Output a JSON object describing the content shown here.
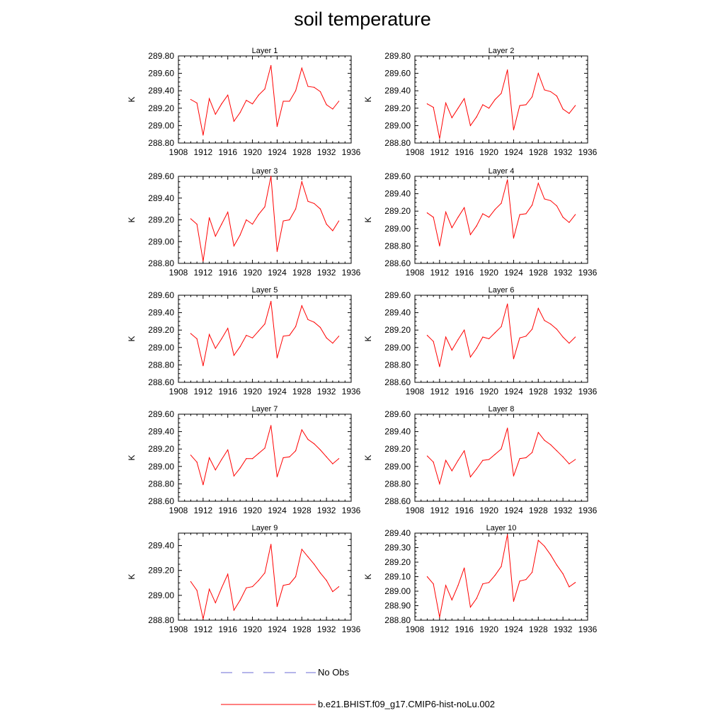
{
  "title": "soil temperature",
  "chart_data": {
    "type": "line",
    "ylabel": "K",
    "x": [
      1910,
      1911,
      1912,
      1913,
      1914,
      1915,
      1916,
      1917,
      1918,
      1919,
      1920,
      1921,
      1922,
      1923,
      1924,
      1925,
      1926,
      1927,
      1928,
      1929,
      1930,
      1931,
      1932,
      1933,
      1934
    ],
    "xlim": [
      1908,
      1936
    ],
    "xticks": [
      "1908",
      "1912",
      "1916",
      "1920",
      "1924",
      "1928",
      "1932",
      "1936"
    ],
    "legend": [
      {
        "label": "No Obs",
        "color": "#6b6bd6",
        "style": "dashed"
      },
      {
        "label": "b.e21.BHIST.f09_g17.CMIP6-hist-noLu.002",
        "color": "#ff0000",
        "style": "solid"
      }
    ],
    "panels": [
      {
        "title": "Layer 1",
        "ylim": [
          288.8,
          289.8
        ],
        "yticks": [
          "288.80",
          "289.00",
          "289.20",
          "289.40",
          "289.60",
          "289.80"
        ],
        "values": [
          289.3,
          289.26,
          288.89,
          289.31,
          289.13,
          289.25,
          289.35,
          289.05,
          289.15,
          289.29,
          289.25,
          289.35,
          289.42,
          289.69,
          288.99,
          289.28,
          289.28,
          289.4,
          289.66,
          289.45,
          289.44,
          289.39,
          289.24,
          289.19,
          289.28
        ]
      },
      {
        "title": "Layer 2",
        "ylim": [
          288.8,
          289.8
        ],
        "yticks": [
          "288.80",
          "289.00",
          "289.20",
          "289.40",
          "289.60",
          "289.80"
        ],
        "values": [
          289.25,
          289.21,
          288.85,
          289.26,
          289.09,
          289.2,
          289.31,
          289.0,
          289.1,
          289.24,
          289.2,
          289.3,
          289.37,
          289.64,
          288.95,
          289.23,
          289.24,
          289.33,
          289.6,
          289.41,
          289.39,
          289.34,
          289.19,
          289.14,
          289.23
        ]
      },
      {
        "title": "Layer 3",
        "ylim": [
          288.8,
          289.6
        ],
        "yticks": [
          "288.80",
          "289.00",
          "289.20",
          "289.40",
          "289.60"
        ],
        "values": [
          289.21,
          289.16,
          288.82,
          289.22,
          289.05,
          289.16,
          289.27,
          288.96,
          289.06,
          289.2,
          289.16,
          289.25,
          289.32,
          289.6,
          288.91,
          289.19,
          289.2,
          289.3,
          289.55,
          289.37,
          289.35,
          289.3,
          289.16,
          289.1,
          289.19
        ]
      },
      {
        "title": "Layer 4",
        "ylim": [
          288.6,
          289.6
        ],
        "yticks": [
          "288.60",
          "288.80",
          "289.00",
          "289.20",
          "289.40",
          "289.60"
        ],
        "values": [
          289.18,
          289.13,
          288.8,
          289.19,
          289.01,
          289.13,
          289.24,
          288.93,
          289.03,
          289.17,
          289.13,
          289.22,
          289.29,
          289.56,
          288.89,
          289.16,
          289.17,
          289.27,
          289.52,
          289.34,
          289.32,
          289.26,
          289.13,
          289.07,
          289.16
        ]
      },
      {
        "title": "Layer 5",
        "ylim": [
          288.6,
          289.6
        ],
        "yticks": [
          "288.60",
          "288.80",
          "289.00",
          "289.20",
          "289.40",
          "289.60"
        ],
        "values": [
          289.16,
          289.1,
          288.79,
          289.15,
          288.99,
          289.1,
          289.22,
          288.91,
          289.01,
          289.14,
          289.11,
          289.19,
          289.27,
          289.53,
          288.88,
          289.13,
          289.14,
          289.24,
          289.48,
          289.32,
          289.29,
          289.23,
          289.11,
          289.05,
          289.13
        ]
      },
      {
        "title": "Layer 6",
        "ylim": [
          288.6,
          289.6
        ],
        "yticks": [
          "288.60",
          "288.80",
          "289.00",
          "289.20",
          "289.40",
          "289.60"
        ],
        "values": [
          289.14,
          289.07,
          288.78,
          289.12,
          288.97,
          289.09,
          289.2,
          288.89,
          288.99,
          289.12,
          289.1,
          289.17,
          289.24,
          289.5,
          288.87,
          289.11,
          289.13,
          289.21,
          289.45,
          289.31,
          289.27,
          289.21,
          289.12,
          289.05,
          289.12
        ]
      },
      {
        "title": "Layer 7",
        "ylim": [
          288.6,
          289.6
        ],
        "yticks": [
          "288.60",
          "288.80",
          "289.00",
          "289.20",
          "289.40",
          "289.60"
        ],
        "values": [
          289.13,
          289.05,
          288.79,
          289.1,
          288.96,
          289.08,
          289.19,
          288.89,
          288.98,
          289.09,
          289.09,
          289.15,
          289.21,
          289.47,
          288.88,
          289.1,
          289.11,
          289.18,
          289.42,
          289.31,
          289.26,
          289.19,
          289.11,
          289.03,
          289.09
        ]
      },
      {
        "title": "Layer 8",
        "ylim": [
          288.6,
          289.6
        ],
        "yticks": [
          "288.60",
          "288.80",
          "289.00",
          "289.20",
          "289.40",
          "289.60"
        ],
        "values": [
          289.12,
          289.05,
          288.8,
          289.07,
          288.95,
          289.07,
          289.18,
          288.88,
          288.97,
          289.07,
          289.08,
          289.14,
          289.2,
          289.44,
          288.89,
          289.09,
          289.1,
          289.16,
          289.39,
          289.3,
          289.25,
          289.18,
          289.11,
          289.03,
          289.08
        ]
      },
      {
        "title": "Layer 9",
        "ylim": [
          288.8,
          289.5
        ],
        "yticks": [
          "288.80",
          "289.00",
          "289.20",
          "289.40"
        ],
        "values": [
          289.11,
          289.04,
          288.81,
          289.05,
          288.94,
          289.06,
          289.17,
          288.88,
          288.96,
          289.06,
          289.07,
          289.12,
          289.18,
          289.41,
          288.91,
          289.08,
          289.09,
          289.15,
          289.37,
          289.31,
          289.25,
          289.18,
          289.12,
          289.03,
          289.07
        ]
      },
      {
        "title": "Layer 10",
        "ylim": [
          288.8,
          289.4
        ],
        "yticks": [
          "288.80",
          "288.90",
          "289.00",
          "289.10",
          "289.20",
          "289.30",
          "289.40"
        ],
        "values": [
          289.1,
          289.05,
          288.82,
          289.04,
          288.94,
          289.04,
          289.16,
          288.89,
          288.95,
          289.05,
          289.06,
          289.11,
          289.17,
          289.39,
          288.93,
          289.07,
          289.08,
          289.13,
          289.35,
          289.31,
          289.25,
          289.18,
          289.12,
          289.03,
          289.06
        ]
      }
    ]
  }
}
